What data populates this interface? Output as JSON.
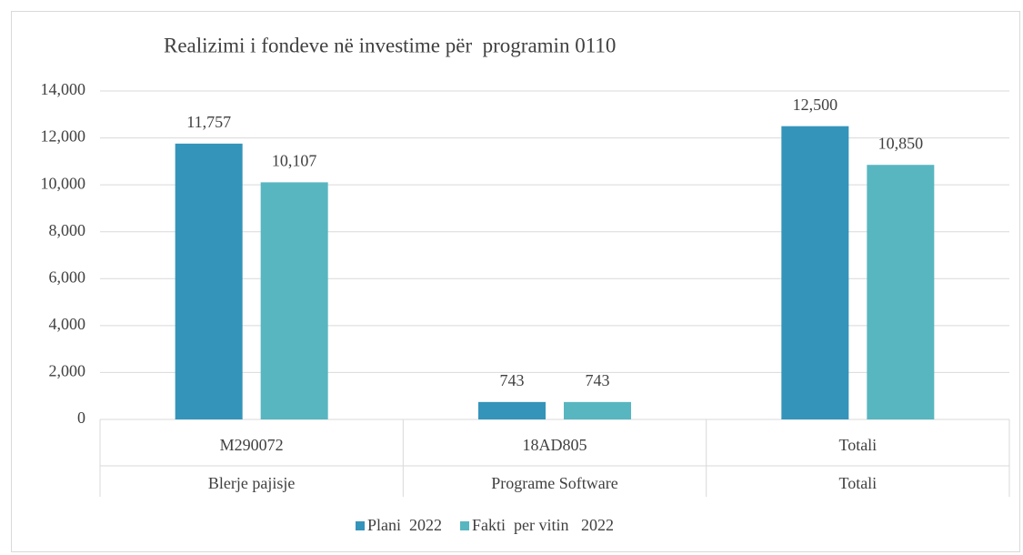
{
  "chart_data": {
    "type": "bar",
    "title": "Realizimi i fondeve në investime për  programin 0110",
    "categories": [
      "M290072",
      "18AD805",
      "Totali"
    ],
    "category_groups": [
      "Blerje pajisje",
      "Programe Software",
      "Totali"
    ],
    "series": [
      {
        "name": "Plani  2022",
        "color": "#3494ba",
        "values": [
          11757,
          743,
          12500
        ],
        "value_labels": [
          "11,757",
          "743",
          "12,500"
        ]
      },
      {
        "name": "Fakti  per vitin   2022",
        "color": "#58b6c0",
        "values": [
          10107,
          743,
          10850
        ],
        "value_labels": [
          "10,107",
          "743",
          "10,850"
        ]
      }
    ],
    "ylim": [
      0,
      14000
    ],
    "yticks": [
      0,
      {
        "value": 2000,
        "label": "2,000"
      },
      {
        "value": 4000,
        "label": "4,000"
      },
      {
        "value": 6000,
        "label": "6,000"
      },
      {
        "value": 8000,
        "label": "8,000"
      },
      {
        "value": 10000,
        "label": "10,000"
      },
      {
        "value": 12000,
        "label": "12,000"
      },
      {
        "value": 14000,
        "label": "14,000"
      }
    ],
    "grid": true,
    "legend": "bottom"
  }
}
